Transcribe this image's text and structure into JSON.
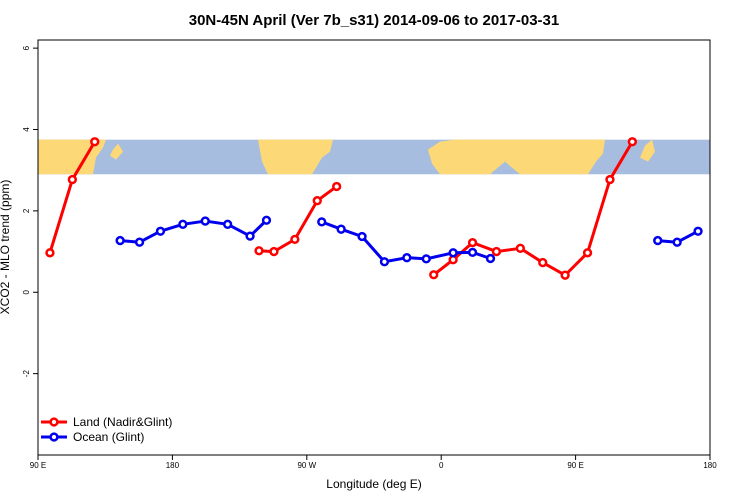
{
  "chart_data": {
    "type": "line",
    "title": "30N-45N April (Ver 7b_s31)   2014-09-06 to 2017-03-31",
    "xlabel": "Longitude (deg E)",
    "ylabel": "XCO2 - MLO trend (ppm)",
    "xlim": [
      90,
      540
    ],
    "ylim": [
      -4,
      6.2
    ],
    "x_ticks": [
      {
        "value": 90,
        "label": "90 E"
      },
      {
        "value": 180,
        "label": "180"
      },
      {
        "value": 270,
        "label": "90 W"
      },
      {
        "value": 360,
        "label": "0"
      },
      {
        "value": 450,
        "label": "90 E"
      },
      {
        "value": 540,
        "label": "180"
      }
    ],
    "y_ticks": [
      {
        "value": -2,
        "label": "-2"
      },
      {
        "value": 0,
        "label": "0"
      },
      {
        "value": 2,
        "label": "2"
      },
      {
        "value": 4,
        "label": "4"
      },
      {
        "value": 6,
        "label": "6"
      }
    ],
    "map_band": {
      "ymin": 2.9,
      "ymax": 3.75,
      "ocean_color": "#a7bddf",
      "land_color": "#fdd876"
    },
    "legend_position": "bottom-left",
    "series": [
      {
        "name": "Land (Nadir&Glint)",
        "color": "#ff0000",
        "segments": [
          [
            [
              98,
              0.97
            ],
            [
              113,
              2.77
            ],
            [
              128,
              3.7
            ]
          ],
          [
            [
              238,
              1.02
            ],
            [
              248,
              1.0
            ],
            [
              262,
              1.3
            ],
            [
              277,
              2.25
            ],
            [
              290,
              2.6
            ]
          ],
          [
            [
              355,
              0.43
            ],
            [
              368,
              0.8
            ],
            [
              381,
              1.22
            ],
            [
              397,
              1.0
            ],
            [
              413,
              1.08
            ],
            [
              428,
              0.73
            ],
            [
              443,
              0.42
            ],
            [
              458,
              0.97
            ],
            [
              473,
              2.77
            ],
            [
              488,
              3.7
            ]
          ]
        ]
      },
      {
        "name": "Ocean (Glint)",
        "color": "#0000ee",
        "segments": [
          [
            [
              145,
              1.27
            ],
            [
              158,
              1.23
            ],
            [
              172,
              1.5
            ],
            [
              187,
              1.67
            ],
            [
              202,
              1.75
            ],
            [
              217,
              1.67
            ],
            [
              232,
              1.38
            ],
            [
              243,
              1.77
            ]
          ],
          [
            [
              280,
              1.73
            ],
            [
              293,
              1.55
            ],
            [
              307,
              1.37
            ],
            [
              322,
              0.75
            ],
            [
              337,
              0.85
            ],
            [
              350,
              0.82
            ],
            [
              368,
              0.97
            ],
            [
              381,
              0.98
            ],
            [
              393,
              0.83
            ]
          ],
          [
            [
              505,
              1.27
            ],
            [
              518,
              1.23
            ],
            [
              532,
              1.5
            ]
          ]
        ]
      }
    ]
  }
}
